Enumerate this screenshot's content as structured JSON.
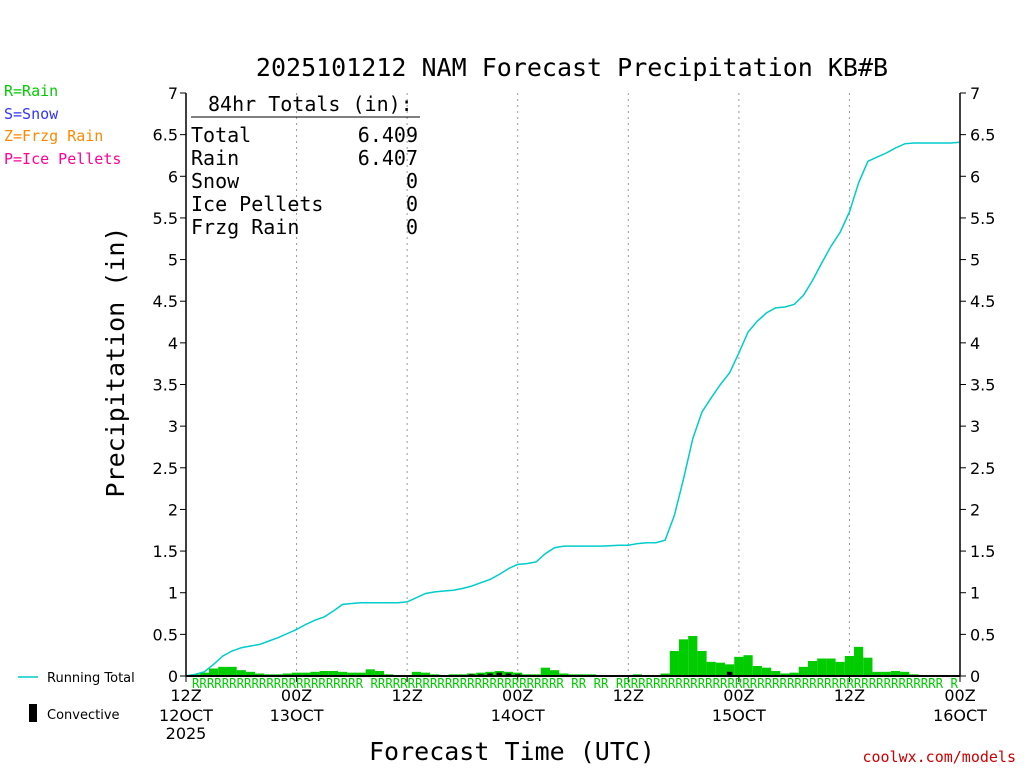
{
  "chart_data": {
    "type": "bar+line",
    "title": "2025101212 NAM Forecast Precipitation KB#B",
    "xlabel": "Forecast Time (UTC)",
    "ylabel": "Precipitation (in)",
    "ylim": [
      0,
      7
    ],
    "yticks": [
      "0",
      "0.5",
      "1",
      "1.5",
      "2",
      "2.5",
      "3",
      "3.5",
      "4",
      "4.5",
      "5",
      "5.5",
      "6",
      "6.5",
      "7"
    ],
    "xlim_hours": [
      0,
      84
    ],
    "xticks": [
      {
        "hour": 0,
        "line1": "12Z",
        "line2": "12OCT",
        "line3": "2025"
      },
      {
        "hour": 12,
        "line1": "00Z",
        "line2": "13OCT",
        "line3": ""
      },
      {
        "hour": 24,
        "line1": "12Z",
        "line2": "",
        "line3": ""
      },
      {
        "hour": 36,
        "line1": "00Z",
        "line2": "14OCT",
        "line3": ""
      },
      {
        "hour": 48,
        "line1": "12Z",
        "line2": "",
        "line3": ""
      },
      {
        "hour": 60,
        "line1": "00Z",
        "line2": "15OCT",
        "line3": ""
      },
      {
        "hour": 72,
        "line1": "12Z",
        "line2": "",
        "line3": ""
      },
      {
        "hour": 84,
        "line1": "00Z",
        "line2": "16OCT",
        "line3": ""
      }
    ],
    "gridlines_hours": [
      12,
      24,
      36,
      48,
      60,
      72
    ],
    "legend": {
      "rain": {
        "label": "R=Rain",
        "color": "#00cc00"
      },
      "snow": {
        "label": "S=Snow",
        "color": "#3333ff"
      },
      "frzg": {
        "label": "Z=Frzg Rain",
        "color": "#ff8800"
      },
      "pellets": {
        "label": "P=Ice Pellets",
        "color": "#ff0099"
      },
      "running": {
        "label": "Running Total",
        "color": "#00cccc"
      },
      "convective": {
        "label": "Convective",
        "color": "#000000"
      }
    },
    "totals": {
      "header": "84hr Totals (in):",
      "rows": [
        {
          "label": "Total",
          "value": "6.409"
        },
        {
          "label": "Rain",
          "value": "6.407"
        },
        {
          "label": "Snow",
          "value": "0"
        },
        {
          "label": "Ice Pellets",
          "value": "0"
        },
        {
          "label": "Frzg Rain",
          "value": "0"
        }
      ]
    },
    "ptype_strip": "RRRRRRRRRRRRRRRRRRRRRRR RRRRRRRRRRRRRRRRRRRRRRRRRR  RR  RR  RRRRRRRRRRRRRRRRRRRRRRRRRRRRRRRRRRRRRRRRRRRR       R",
    "series_interval_hours": 1,
    "hourly_precip": [
      0,
      0.02,
      0.04,
      0.09,
      0.11,
      0.11,
      0.07,
      0.05,
      0.03,
      0.02,
      0.02,
      0.03,
      0.04,
      0.04,
      0.05,
      0.06,
      0.06,
      0.05,
      0.04,
      0.04,
      0.08,
      0.06,
      0.02,
      0.01,
      0.01,
      0.05,
      0.04,
      0.02,
      0.01,
      0.02,
      0.02,
      0.03,
      0.04,
      0.05,
      0.06,
      0.05,
      0.04,
      0.02,
      0.02,
      0.1,
      0.07,
      0.03,
      0.02,
      0.02,
      0.02,
      0.01,
      0.01,
      0.01,
      0.01,
      0.02,
      0.01,
      0.01,
      0.03,
      0.3,
      0.44,
      0.48,
      0.3,
      0.17,
      0.16,
      0.14,
      0.23,
      0.25,
      0.12,
      0.1,
      0.06,
      0.03,
      0.04,
      0.11,
      0.18,
      0.21,
      0.21,
      0.17,
      0.24,
      0.35,
      0.22,
      0.05,
      0.05,
      0.06,
      0.05,
      0.02,
      0.01,
      0.01,
      0.01,
      0.01,
      0
    ],
    "running_total": [
      0,
      0.02,
      0.05,
      0.14,
      0.24,
      0.3,
      0.34,
      0.36,
      0.38,
      0.42,
      0.46,
      0.51,
      0.56,
      0.62,
      0.67,
      0.71,
      0.78,
      0.86,
      0.87,
      0.88,
      0.88,
      0.88,
      0.88,
      0.88,
      0.89,
      0.94,
      0.99,
      1.01,
      1.02,
      1.03,
      1.05,
      1.08,
      1.12,
      1.16,
      1.22,
      1.29,
      1.34,
      1.35,
      1.37,
      1.47,
      1.54,
      1.56,
      1.56,
      1.56,
      1.56,
      1.56,
      1.565,
      1.57,
      1.57,
      1.59,
      1.6,
      1.6,
      1.63,
      1.93,
      2.37,
      2.85,
      3.17,
      3.34,
      3.5,
      3.64,
      3.88,
      4.13,
      4.26,
      4.36,
      4.42,
      4.43,
      4.46,
      4.57,
      4.75,
      4.96,
      5.16,
      5.33,
      5.57,
      5.92,
      6.18,
      6.23,
      6.28,
      6.34,
      6.39,
      6.4,
      6.4,
      6.4,
      6.4,
      6.4,
      6.409
    ],
    "convective": [
      0,
      0,
      0,
      0,
      0,
      0,
      0,
      0,
      0,
      0,
      0,
      0,
      0,
      0,
      0,
      0,
      0,
      0,
      0,
      0,
      0,
      0,
      0,
      0,
      0,
      0,
      0,
      0,
      0,
      0,
      0,
      0.02,
      0.02,
      0.03,
      0.04,
      0.03,
      0.02,
      0,
      0,
      0,
      0,
      0,
      0,
      0,
      0,
      0,
      0,
      0,
      0,
      0,
      0,
      0,
      0,
      0,
      0,
      0,
      0,
      0,
      0,
      0.05,
      0,
      0,
      0,
      0,
      0,
      0,
      0,
      0,
      0,
      0,
      0,
      0,
      0,
      0,
      0,
      0,
      0,
      0,
      0,
      0,
      0,
      0,
      0,
      0,
      0
    ]
  },
  "site_credit": "coolwx.com/models"
}
